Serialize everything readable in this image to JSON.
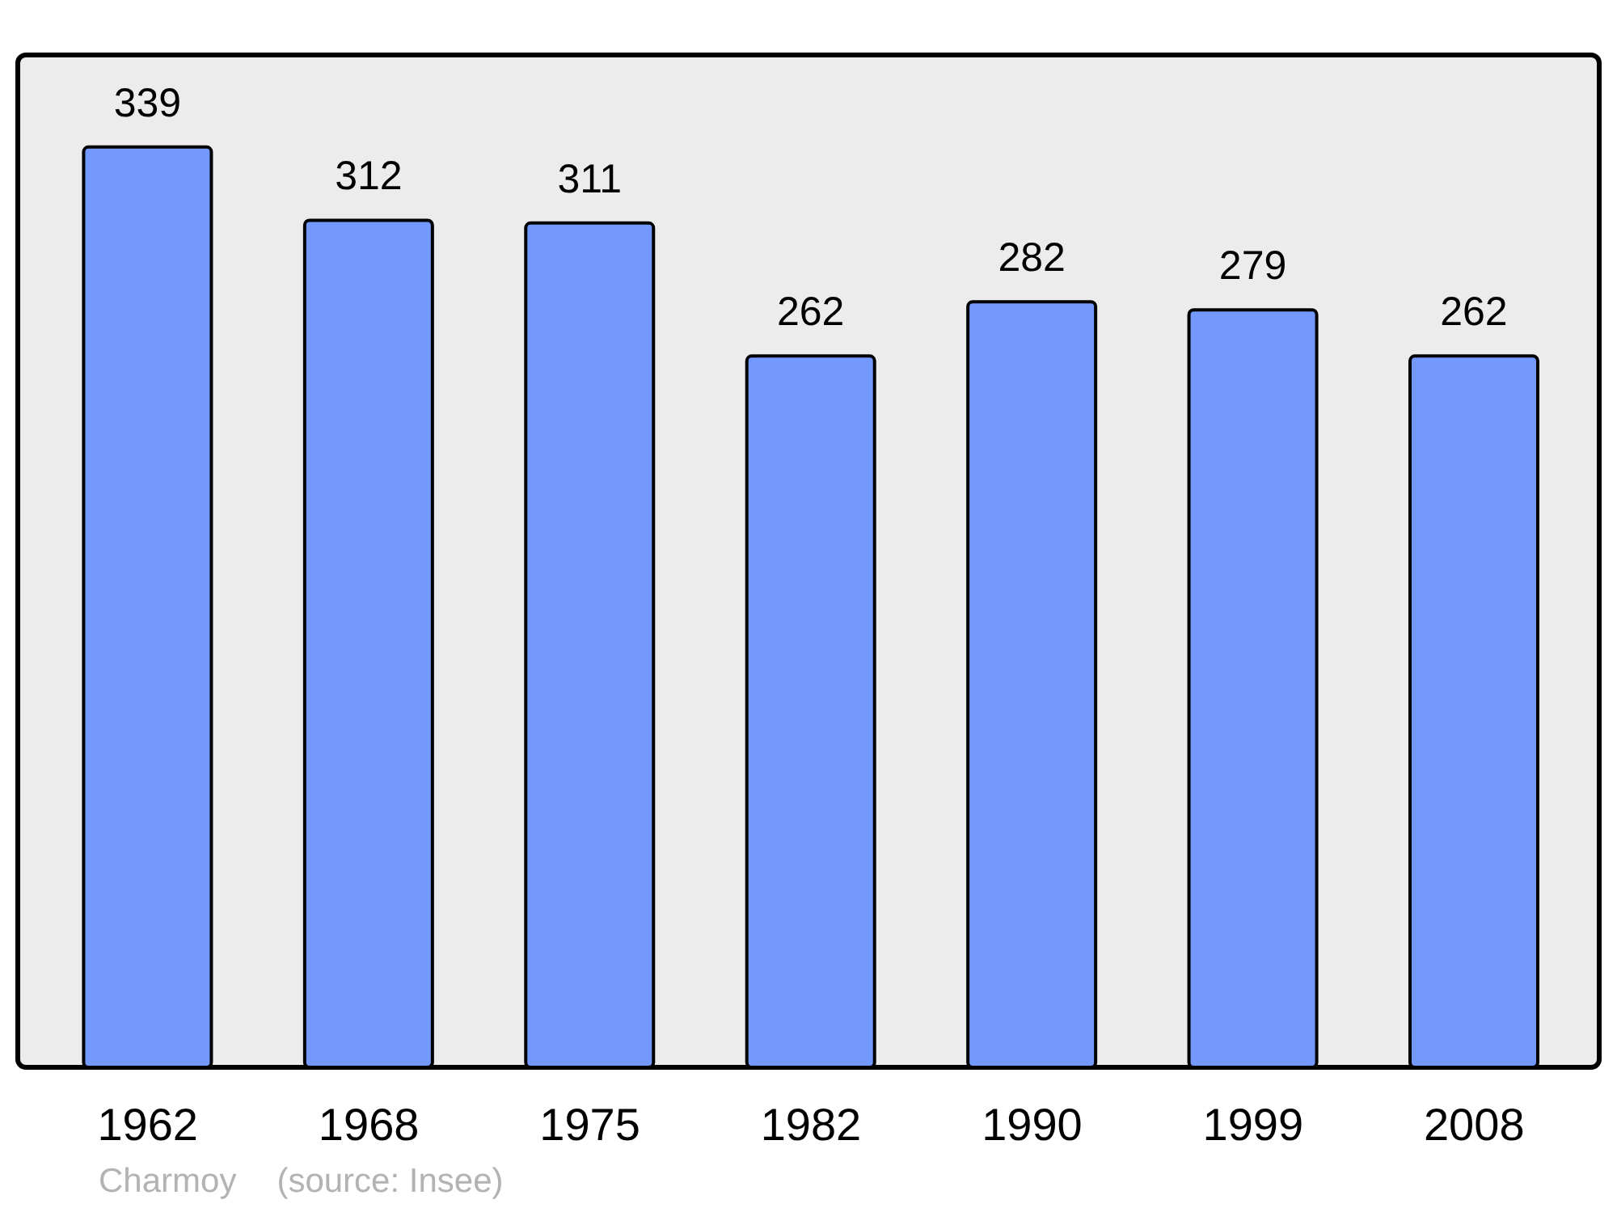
{
  "chart_data": {
    "type": "bar",
    "categories": [
      "1962",
      "1968",
      "1975",
      "1982",
      "1990",
      "1999",
      "2008"
    ],
    "values": [
      339,
      312,
      311,
      262,
      282,
      279,
      262
    ],
    "color": "#7399ff",
    "data_labels": true,
    "tick_labels": "x",
    "annotations": [
      "Charmoy",
      "(source: Insee)"
    ]
  }
}
